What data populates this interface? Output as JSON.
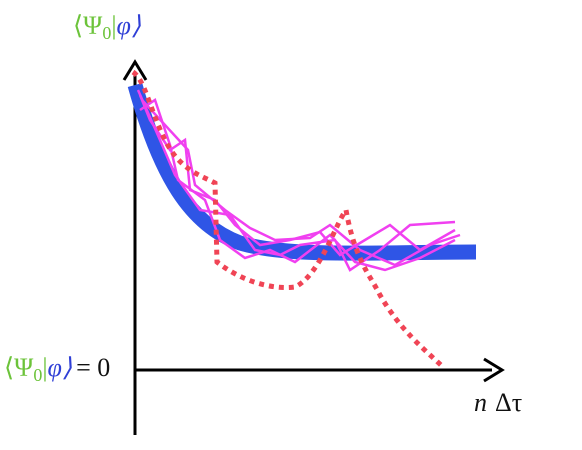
{
  "labels": {
    "top": {
      "bra": "⟨Ψ",
      "sub": "0",
      "bar": "|",
      "ket": "φ⟩"
    },
    "origin": {
      "bra": "⟨Ψ",
      "sub": "0",
      "bar": "|",
      "ket": "φ⟩",
      "rest": "= 0"
    },
    "x_axis": {
      "n": "n",
      "dtau": "Δτ"
    }
  }
}
